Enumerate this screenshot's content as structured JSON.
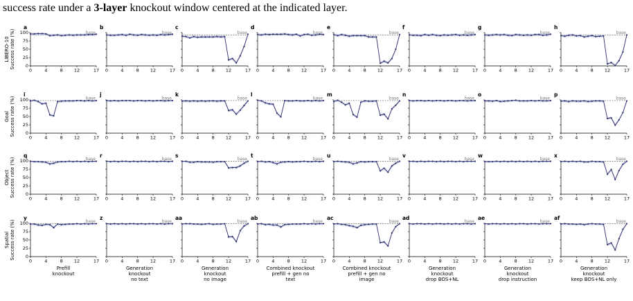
{
  "caption": {
    "text_before": "success rate under a ",
    "bold": "3-layer",
    "text_after": " knockout window centered at the indicated layer."
  },
  "colors": {
    "line": "#2b2f6b",
    "band": "#b9bde0",
    "baseline": "#666666"
  },
  "chart_data": {
    "type": "line",
    "x": [
      0,
      1,
      2,
      3,
      4,
      5,
      6,
      7,
      8,
      9,
      10,
      11,
      12,
      13,
      14,
      15,
      16,
      17
    ],
    "xticks": [
      0,
      4,
      8,
      12,
      17
    ],
    "yticks": [
      0,
      25,
      50,
      75,
      100
    ],
    "ylim": [
      0,
      100
    ],
    "xlim": [
      0,
      17
    ],
    "baseline_label": "base",
    "column_labels": [
      [
        "Prefill",
        "knockout"
      ],
      [
        "Generation",
        "knockout",
        "no text"
      ],
      [
        "Generation",
        "knockout",
        "no image"
      ],
      [
        "Combined knockout",
        "prefill + gen no",
        "text"
      ],
      [
        "Combined knockout",
        "prefill + gen no",
        "image"
      ],
      [
        "Generation",
        "knockout",
        "drop BOS+NL"
      ],
      [
        "Generation",
        "knockout",
        "drop instruction"
      ],
      [
        "Generation",
        "knockout",
        "keep BOS+NL only"
      ]
    ],
    "rows": [
      {
        "label_lines": [
          "LIBERO-10",
          "Success rate (%)"
        ],
        "baseline": 93,
        "panels": [
          {
            "letter": "a",
            "values": [
              96,
              96,
              97,
              97,
              96,
              91,
              92,
              93,
              91,
              92,
              93,
              92,
              93,
              93,
              93,
              94,
              94,
              95
            ]
          },
          {
            "letter": "b",
            "values": [
              93,
              92,
              92,
              93,
              94,
              92,
              95,
              93,
              92,
              94,
              93,
              92,
              93,
              92,
              94,
              93,
              94,
              95
            ]
          },
          {
            "letter": "c",
            "values": [
              89,
              88,
              84,
              88,
              86,
              87,
              87,
              87,
              87,
              88,
              87,
              88,
              18,
              22,
              9,
              30,
              58,
              95
            ]
          },
          {
            "letter": "d",
            "values": [
              94,
              93,
              95,
              94,
              95,
              95,
              95,
              96,
              94,
              93,
              95,
              90,
              94,
              95,
              92,
              93,
              95,
              94
            ]
          },
          {
            "letter": "e",
            "values": [
              94,
              91,
              94,
              92,
              89,
              91,
              91,
              91,
              91,
              87,
              87,
              87,
              8,
              14,
              9,
              22,
              50,
              94
            ]
          },
          {
            "letter": "f",
            "values": [
              93,
              92,
              92,
              91,
              94,
              92,
              94,
              92,
              91,
              93,
              92,
              93,
              94,
              92,
              93,
              92,
              93,
              94
            ]
          },
          {
            "letter": "g",
            "values": [
              93,
              92,
              93,
              94,
              93,
              94,
              92,
              91,
              94,
              93,
              92,
              93,
              92,
              94,
              94,
              92,
              93,
              95
            ]
          },
          {
            "letter": "h",
            "values": [
              91,
              89,
              92,
              93,
              90,
              91,
              87,
              89,
              91,
              88,
              89,
              90,
              6,
              10,
              1,
              16,
              42,
              93
            ]
          }
        ]
      },
      {
        "label_lines": [
          "Goal",
          "Success rate (%)"
        ],
        "baseline": 98,
        "panels": [
          {
            "letter": "i",
            "values": [
              97,
              99,
              95,
              88,
              90,
              55,
              52,
              95,
              96,
              97,
              97,
              97,
              98,
              98,
              97,
              98,
              97,
              98
            ]
          },
          {
            "letter": "j",
            "values": [
              98,
              97,
              98,
              97,
              98,
              98,
              98,
              97,
              98,
              98,
              97,
              98,
              97,
              98,
              98,
              97,
              98,
              98
            ]
          },
          {
            "letter": "k",
            "values": [
              96,
              97,
              96,
              97,
              96,
              97,
              96,
              97,
              97,
              96,
              97,
              97,
              68,
              70,
              57,
              69,
              83,
              97
            ]
          },
          {
            "letter": "l",
            "values": [
              99,
              97,
              91,
              88,
              87,
              60,
              49,
              98,
              97,
              97,
              98,
              97,
              97,
              98,
              97,
              98,
              97,
              98
            ]
          },
          {
            "letter": "m",
            "values": [
              95,
              99,
              93,
              85,
              90,
              56,
              48,
              93,
              97,
              96,
              96,
              97,
              54,
              57,
              43,
              73,
              84,
              97
            ]
          },
          {
            "letter": "n",
            "values": [
              98,
              97,
              98,
              98,
              97,
              98,
              97,
              98,
              98,
              97,
              98,
              98,
              97,
              98,
              98,
              97,
              98,
              98
            ]
          },
          {
            "letter": "o",
            "values": [
              97,
              97,
              96,
              98,
              95,
              96,
              97,
              98,
              99,
              97,
              97,
              97,
              98,
              97,
              98,
              97,
              97,
              98
            ]
          },
          {
            "letter": "p",
            "values": [
              96,
              97,
              95,
              97,
              96,
              96,
              97,
              95,
              96,
              97,
              97,
              96,
              44,
              46,
              24,
              40,
              62,
              97
            ]
          }
        ]
      },
      {
        "label_lines": [
          "Object",
          "Success rate (%)"
        ],
        "baseline": 99,
        "panels": [
          {
            "letter": "q",
            "values": [
              99,
              98,
              98,
              97,
              96,
              91,
              93,
              97,
              98,
              98,
              99,
              98,
              99,
              98,
              99,
              98,
              99,
              99
            ]
          },
          {
            "letter": "r",
            "values": [
              99,
              98,
              99,
              98,
              99,
              99,
              98,
              99,
              98,
              99,
              99,
              98,
              99,
              98,
              99,
              99,
              98,
              99
            ]
          },
          {
            "letter": "s",
            "values": [
              99,
              99,
              96,
              96,
              98,
              97,
              97,
              97,
              96,
              98,
              98,
              98,
              79,
              80,
              80,
              85,
              93,
              99
            ]
          },
          {
            "letter": "t",
            "values": [
              98,
              99,
              97,
              98,
              95,
              91,
              96,
              97,
              98,
              97,
              98,
              98,
              99,
              98,
              98,
              99,
              98,
              99
            ]
          },
          {
            "letter": "u",
            "values": [
              98,
              99,
              98,
              97,
              96,
              91,
              94,
              98,
              97,
              98,
              98,
              98,
              70,
              78,
              66,
              85,
              93,
              99
            ]
          },
          {
            "letter": "v",
            "values": [
              99,
              99,
              98,
              99,
              98,
              99,
              99,
              98,
              99,
              98,
              99,
              99,
              98,
              99,
              98,
              99,
              99,
              99
            ]
          },
          {
            "letter": "w",
            "values": [
              98,
              98,
              98,
              99,
              98,
              99,
              98,
              99,
              98,
              99,
              98,
              99,
              98,
              99,
              98,
              99,
              99,
              99
            ]
          },
          {
            "letter": "x",
            "values": [
              98,
              99,
              98,
              99,
              98,
              99,
              97,
              97,
              99,
              98,
              98,
              97,
              60,
              74,
              44,
              71,
              90,
              99
            ]
          }
        ]
      },
      {
        "label_lines": [
          "Spatial",
          "Success rate (%)"
        ],
        "baseline": 99,
        "panels": [
          {
            "letter": "y",
            "values": [
              98,
              98,
              95,
              94,
              97,
              96,
              87,
              98,
              96,
              97,
              98,
              98,
              99,
              98,
              99,
              98,
              99,
              99
            ]
          },
          {
            "letter": "z",
            "values": [
              99,
              98,
              99,
              98,
              99,
              98,
              99,
              99,
              98,
              99,
              98,
              99,
              99,
              98,
              99,
              98,
              99,
              99
            ]
          },
          {
            "letter": "aa",
            "values": [
              98,
              99,
              99,
              98,
              98,
              97,
              98,
              99,
              97,
              98,
              98,
              99,
              59,
              60,
              45,
              78,
              92,
              99
            ]
          },
          {
            "letter": "ab",
            "values": [
              98,
              99,
              96,
              97,
              95,
              95,
              89,
              96,
              97,
              98,
              98,
              98,
              99,
              98,
              99,
              98,
              99,
              99
            ]
          },
          {
            "letter": "ac",
            "values": [
              98,
              99,
              97,
              96,
              93,
              91,
              87,
              94,
              96,
              97,
              98,
              98,
              42,
              44,
              32,
              71,
              90,
              99
            ]
          },
          {
            "letter": "ad",
            "values": [
              99,
              98,
              99,
              99,
              98,
              99,
              98,
              99,
              99,
              98,
              99,
              98,
              99,
              98,
              99,
              99,
              98,
              99
            ]
          },
          {
            "letter": "ae",
            "values": [
              99,
              98,
              99,
              99,
              98,
              99,
              98,
              99,
              98,
              99,
              99,
              98,
              99,
              99,
              98,
              99,
              99,
              99
            ]
          },
          {
            "letter": "af",
            "values": [
              98,
              99,
              98,
              98,
              97,
              98,
              96,
              98,
              99,
              98,
              98,
              97,
              36,
              41,
              20,
              54,
              82,
              99
            ]
          }
        ]
      }
    ]
  }
}
